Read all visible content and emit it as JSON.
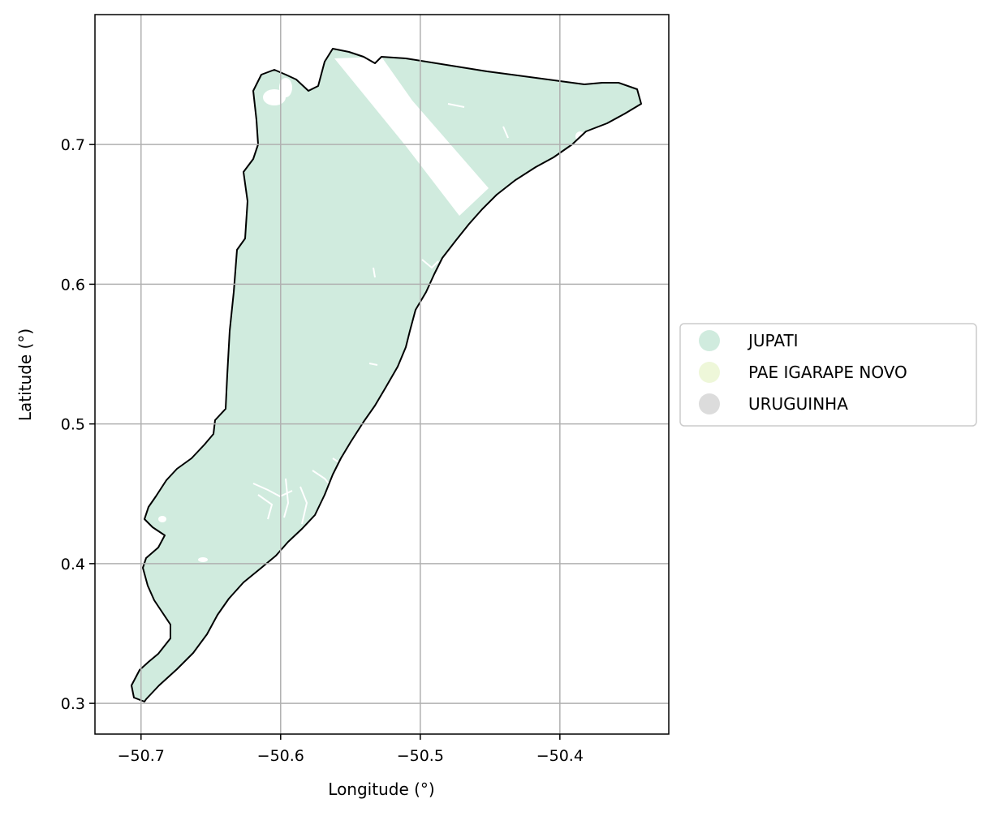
{
  "chart_data": {
    "type": "map",
    "xlabel": "Longitude (°)",
    "ylabel": "Latitude (°)",
    "xlim": [
      -50.733,
      -50.322
    ],
    "ylim": [
      0.278,
      0.793
    ],
    "xticks": [
      -50.7,
      -50.6,
      -50.5,
      -50.4
    ],
    "xtick_labels": [
      "−50.7",
      "−50.6",
      "−50.5",
      "−50.4"
    ],
    "yticks": [
      0.3,
      0.4,
      0.5,
      0.6,
      0.7
    ],
    "ytick_labels": [
      "0.3",
      "0.4",
      "0.5",
      "0.6",
      "0.7"
    ],
    "grid": true,
    "legend_placement": "center-right outside",
    "legend": [
      {
        "label": "JUPATI",
        "color": "#d0ebde"
      },
      {
        "label": "PAE IGARAPE  NOVO",
        "color": "#eef7d9"
      },
      {
        "label": "URUGUINHA",
        "color": "#dcdcdc"
      }
    ],
    "fill_color": "#d0ebde",
    "outline_color": "#000000"
  }
}
